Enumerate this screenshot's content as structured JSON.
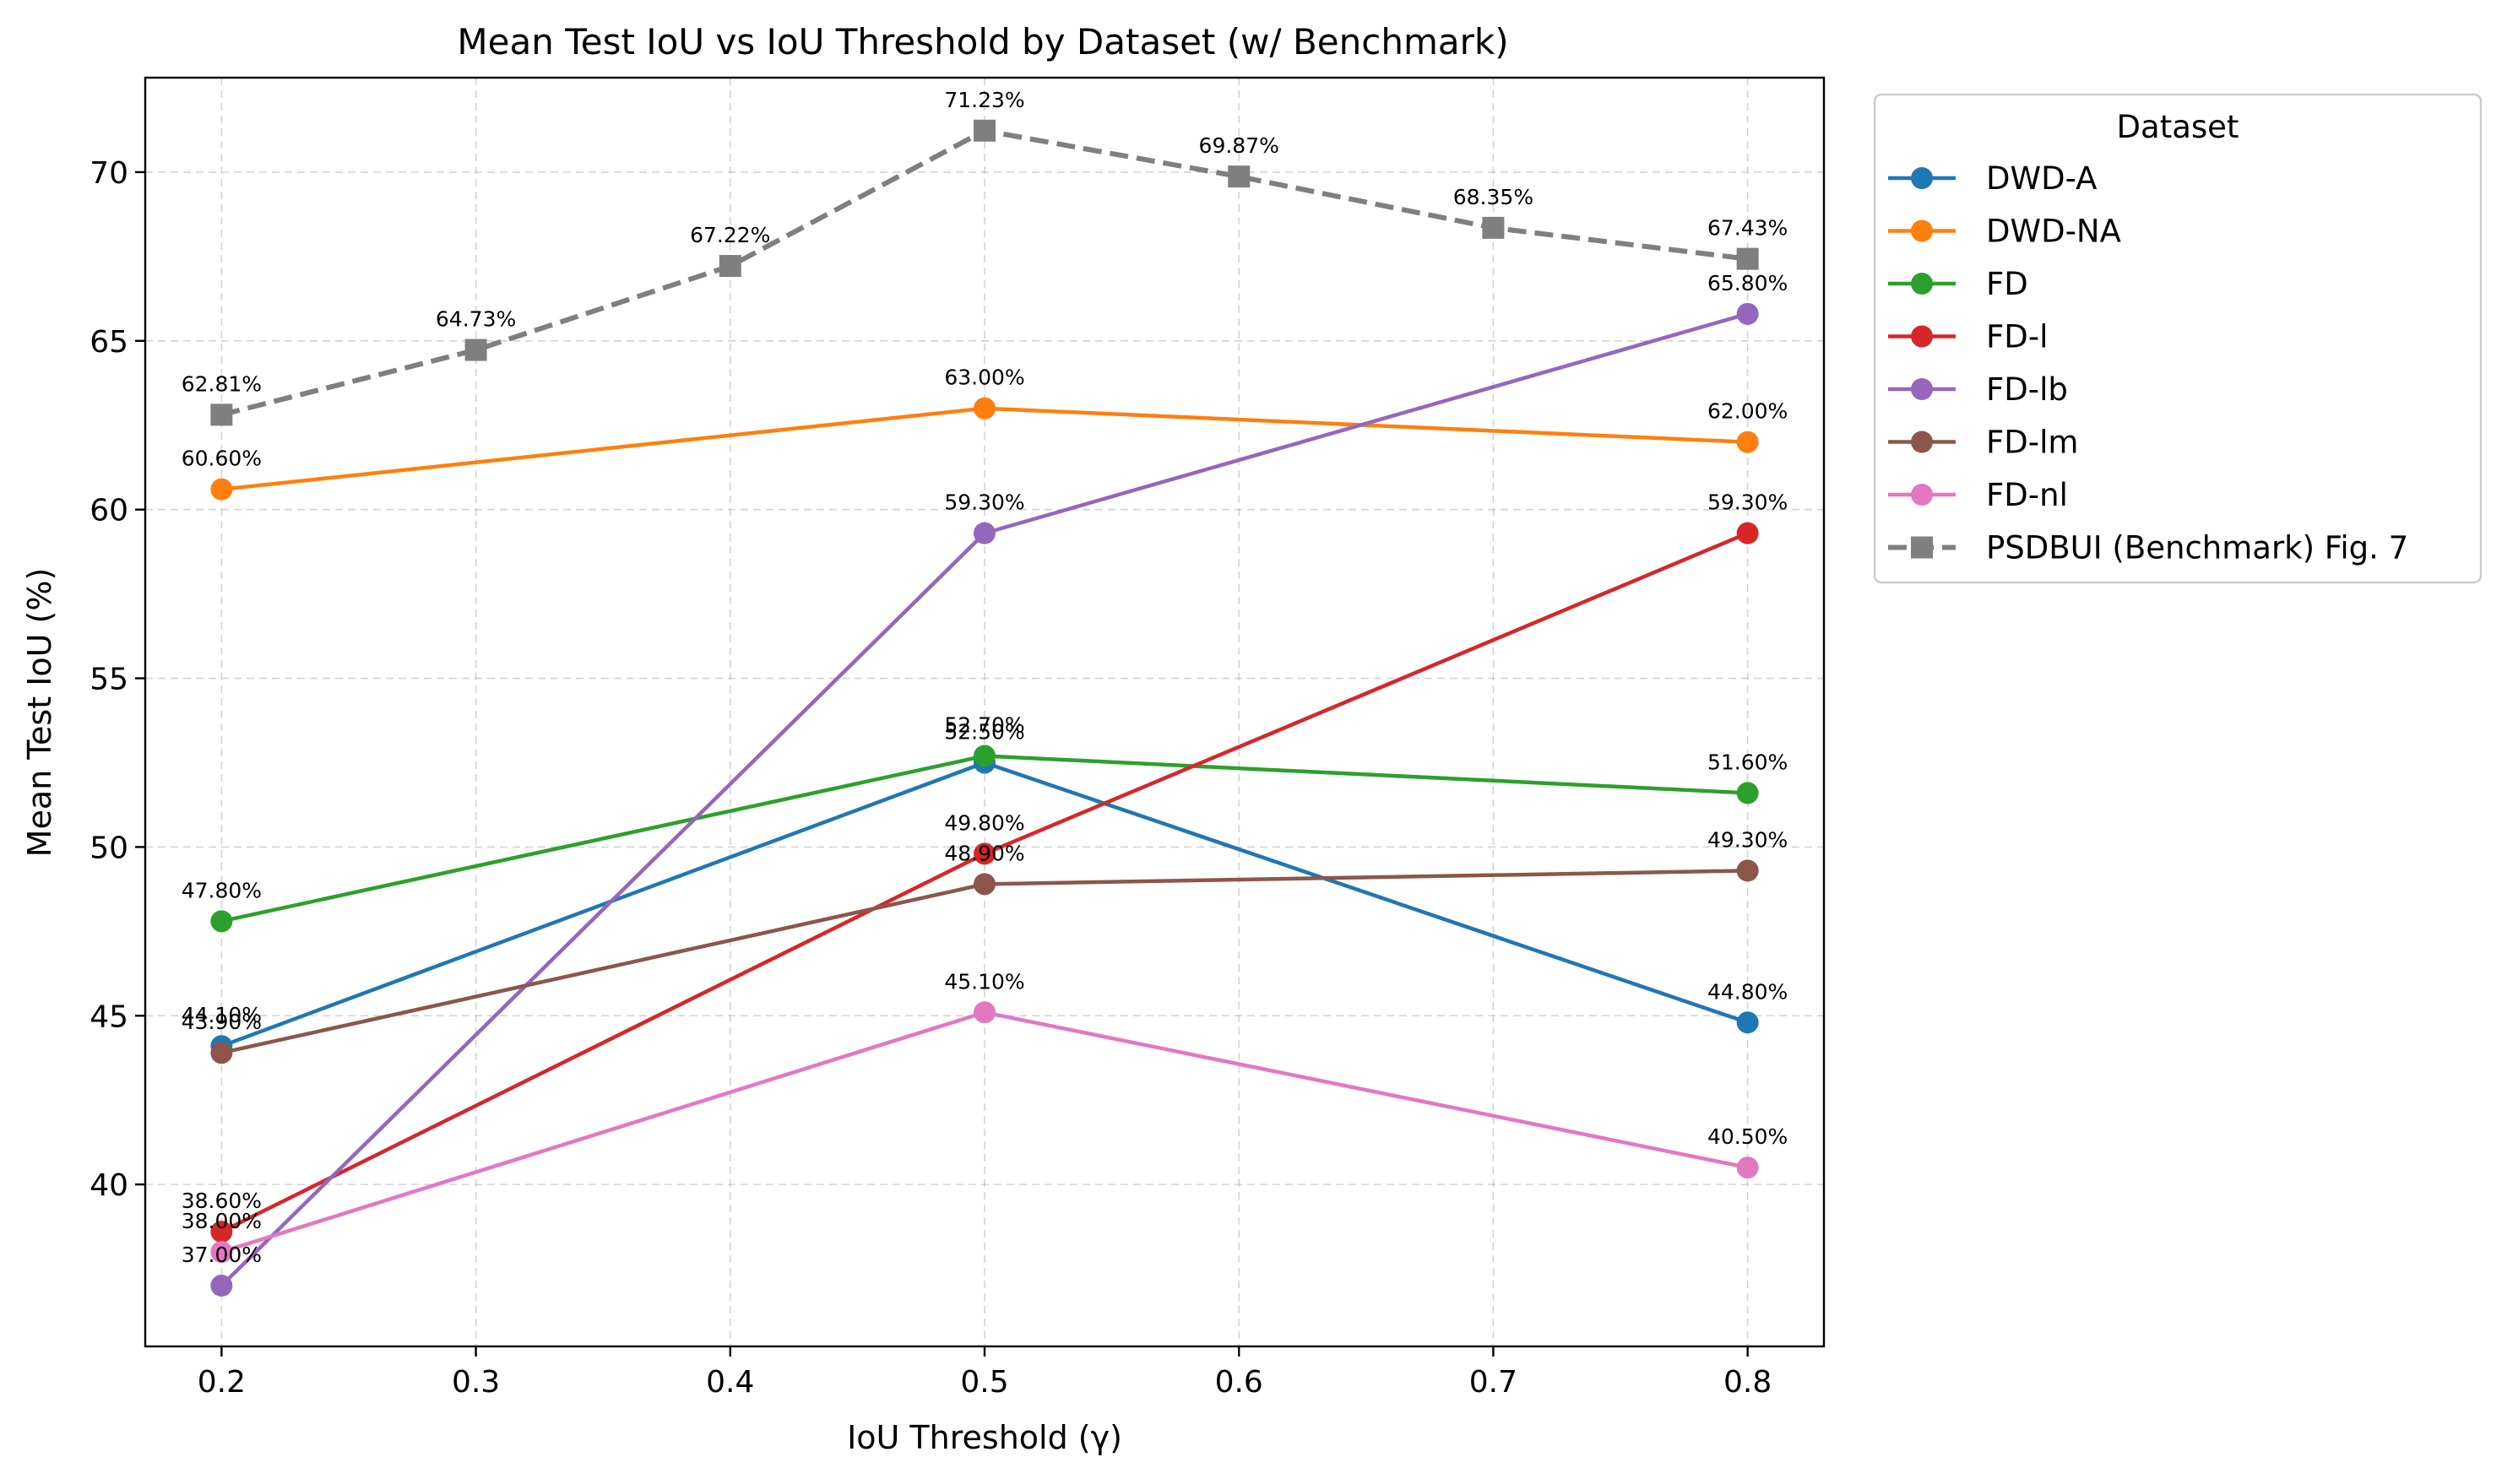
{
  "chart_data": {
    "type": "line",
    "title": "Mean Test IoU vs IoU Threshold by Dataset (w/ Benchmark)",
    "xlabel": "IoU Threshold (γ)",
    "ylabel": "Mean Test IoU (%)",
    "xlim": [
      0.17,
      0.83
    ],
    "ylim": [
      35.2,
      72.8
    ],
    "xticks": [
      0.2,
      0.3,
      0.4,
      0.5,
      0.6,
      0.7,
      0.8
    ],
    "xtick_labels": [
      "0.2",
      "0.3",
      "0.4",
      "0.5",
      "0.6",
      "0.7",
      "0.8"
    ],
    "yticks": [
      40,
      45,
      50,
      55,
      60,
      65,
      70
    ],
    "ytick_labels": [
      "40",
      "45",
      "50",
      "55",
      "60",
      "65",
      "70"
    ],
    "grid": true,
    "legend": {
      "title": "Dataset",
      "placement": "outside-right"
    },
    "series": [
      {
        "name": "DWD-A",
        "color": "#1f77b4",
        "marker": "circle",
        "dashed": false,
        "x": [
          0.2,
          0.5,
          0.8
        ],
        "values": [
          44.1,
          52.5,
          44.8
        ],
        "labels": [
          "44.10%",
          "52.50%",
          "44.80%"
        ]
      },
      {
        "name": "DWD-NA",
        "color": "#ff7f0e",
        "marker": "circle",
        "dashed": false,
        "x": [
          0.2,
          0.5,
          0.8
        ],
        "values": [
          60.6,
          63.0,
          62.0
        ],
        "labels": [
          "60.60%",
          "63.00%",
          "62.00%"
        ]
      },
      {
        "name": "FD",
        "color": "#2ca02c",
        "marker": "circle",
        "dashed": false,
        "x": [
          0.2,
          0.5,
          0.8
        ],
        "values": [
          47.8,
          52.7,
          51.6
        ],
        "labels": [
          "47.80%",
          "52.70%",
          "51.60%"
        ]
      },
      {
        "name": "FD-l",
        "color": "#d62728",
        "marker": "circle",
        "dashed": false,
        "x": [
          0.2,
          0.5,
          0.8
        ],
        "values": [
          38.6,
          49.8,
          59.3
        ],
        "labels": [
          "38.60%",
          "49.80%",
          "59.30%"
        ]
      },
      {
        "name": "FD-lb",
        "color": "#9467bd",
        "marker": "circle",
        "dashed": false,
        "x": [
          0.2,
          0.5,
          0.8
        ],
        "values": [
          37.0,
          59.3,
          65.8
        ],
        "labels": [
          "37.00%",
          "59.30%",
          "65.80%"
        ]
      },
      {
        "name": "FD-lm",
        "color": "#8c564b",
        "marker": "circle",
        "dashed": false,
        "x": [
          0.2,
          0.5,
          0.8
        ],
        "values": [
          43.9,
          48.9,
          49.3
        ],
        "labels": [
          "43.90%",
          "48.90%",
          "49.30%"
        ]
      },
      {
        "name": "FD-nl",
        "color": "#e377c2",
        "marker": "circle",
        "dashed": false,
        "x": [
          0.2,
          0.5,
          0.8
        ],
        "values": [
          38.0,
          45.1,
          40.5
        ],
        "labels": [
          "38.00%",
          "45.10%",
          "40.50%"
        ]
      },
      {
        "name": "PSDBUI (Benchmark) Fig. 7",
        "color": "#7f7f7f",
        "marker": "square",
        "dashed": true,
        "x": [
          0.2,
          0.3,
          0.4,
          0.5,
          0.6,
          0.7,
          0.8
        ],
        "values": [
          62.81,
          64.73,
          67.22,
          71.23,
          69.87,
          68.35,
          67.43
        ],
        "labels": [
          "62.81%",
          "64.73%",
          "67.22%",
          "71.23%",
          "69.87%",
          "68.35%",
          "67.43%"
        ]
      }
    ]
  }
}
